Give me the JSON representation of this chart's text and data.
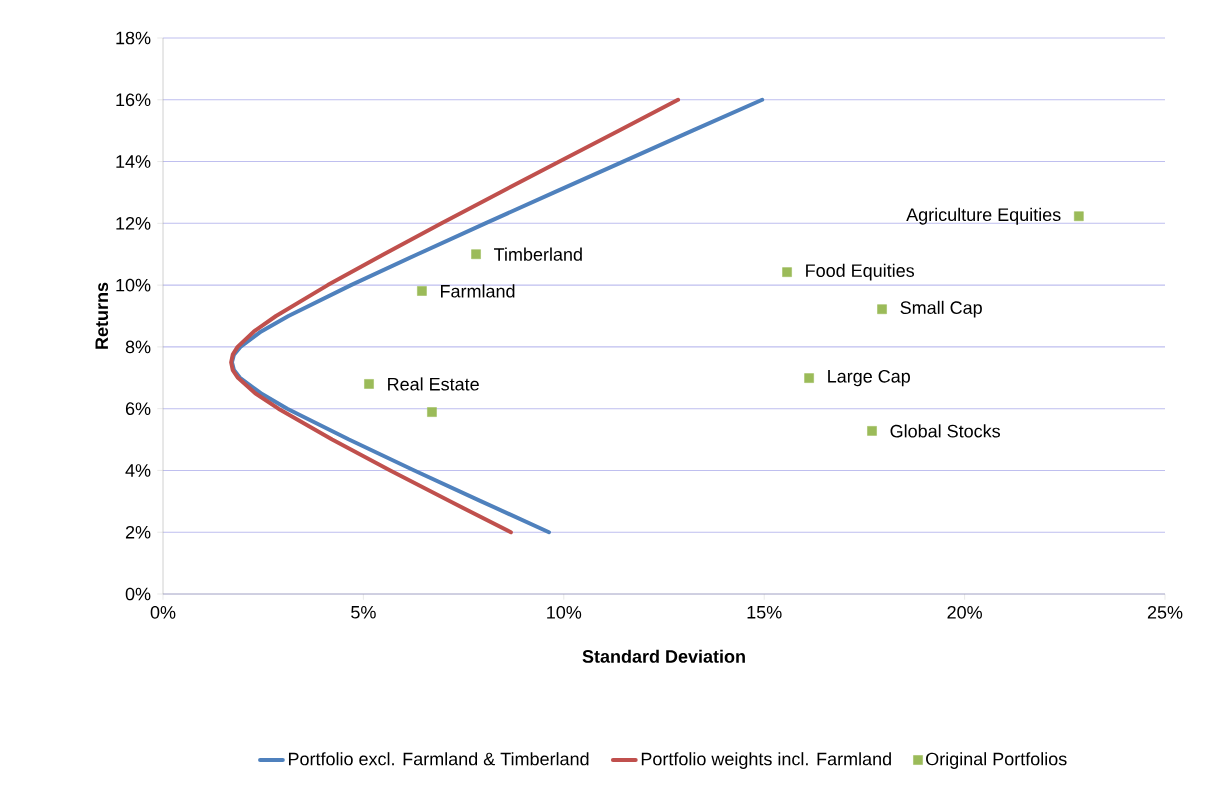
{
  "chart_data": {
    "type": "line",
    "xlabel": "Standard Deviation",
    "ylabel": "Returns",
    "xlim": [
      0,
      25
    ],
    "xticks": [
      {
        "value": 0,
        "label": "0%"
      },
      {
        "value": 5,
        "label": "5%"
      },
      {
        "value": 10,
        "label": "10%"
      },
      {
        "value": 15,
        "label": "15%"
      },
      {
        "value": 20,
        "label": "20%"
      },
      {
        "value": 25,
        "label": "25%"
      }
    ],
    "ylim": [
      0,
      18
    ],
    "yticks": [
      {
        "value": 0,
        "label": "0%"
      },
      {
        "value": 2,
        "label": "2%"
      },
      {
        "value": 4,
        "label": "4%"
      },
      {
        "value": 6,
        "label": "6%"
      },
      {
        "value": 8,
        "label": "8%"
      },
      {
        "value": 10,
        "label": "10%"
      },
      {
        "value": 12,
        "label": "12%"
      },
      {
        "value": 14,
        "label": "14%"
      },
      {
        "value": 16,
        "label": "16%"
      },
      {
        "value": 18,
        "label": "18%"
      }
    ],
    "grid": "y",
    "legend": "bottom",
    "line_style": "solid",
    "series": [
      {
        "name": "Portfolio excl. Farmland & Timberland",
        "color": "#4f81bd",
        "x": [
          9.63,
          7.94,
          6.27,
          4.64,
          3.1,
          2.44,
          1.92,
          1.77,
          1.72,
          1.77,
          1.93,
          2.45,
          3.13,
          4.69,
          6.35,
          8.04,
          9.76,
          11.48,
          13.21,
          14.95
        ],
        "values": [
          2,
          3,
          4,
          5,
          6,
          6.5,
          7,
          7.25,
          7.5,
          7.75,
          8,
          8.5,
          9,
          10,
          11,
          12,
          13,
          14,
          15,
          16
        ]
      },
      {
        "name": "Portfolio weights incl. Farmland",
        "color": "#c0504d",
        "x": [
          8.68,
          7.16,
          5.67,
          4.22,
          2.88,
          2.3,
          1.87,
          1.74,
          1.7,
          1.74,
          1.86,
          2.27,
          2.82,
          4.11,
          5.51,
          6.95,
          8.41,
          9.89,
          11.37,
          12.85
        ],
        "values": [
          2,
          3,
          4,
          5,
          6,
          6.5,
          7,
          7.25,
          7.5,
          7.75,
          8,
          8.5,
          9,
          10,
          11,
          12,
          13,
          14,
          15,
          16
        ]
      },
      {
        "name": "Original Portfolios",
        "type": "scatter",
        "marker": "square",
        "color": "#9bbb59",
        "x": [
          22.85,
          7.81,
          6.46,
          15.57,
          17.94,
          16.12,
          5.14,
          6.71,
          17.69
        ],
        "values": [
          12.23,
          11.0,
          9.81,
          10.42,
          9.22,
          6.99,
          6.8,
          5.89,
          5.28
        ]
      }
    ],
    "annotations": [
      {
        "text": "Agriculture Equities",
        "x": 22.85,
        "y": 12.23
      },
      {
        "text": "Timberland",
        "x": 7.81,
        "y": 11.0
      },
      {
        "text": "Farmland",
        "x": 6.46,
        "y": 9.81
      },
      {
        "text": "Food Equities",
        "x": 15.57,
        "y": 10.42
      },
      {
        "text": "Small Cap",
        "x": 17.94,
        "y": 9.22
      },
      {
        "text": "Large Cap",
        "x": 16.12,
        "y": 6.99
      },
      {
        "text": "Real Estate",
        "x": 5.14,
        "y": 6.8
      },
      {
        "text": "Global Stocks",
        "x": 17.69,
        "y": 5.28
      }
    ]
  }
}
